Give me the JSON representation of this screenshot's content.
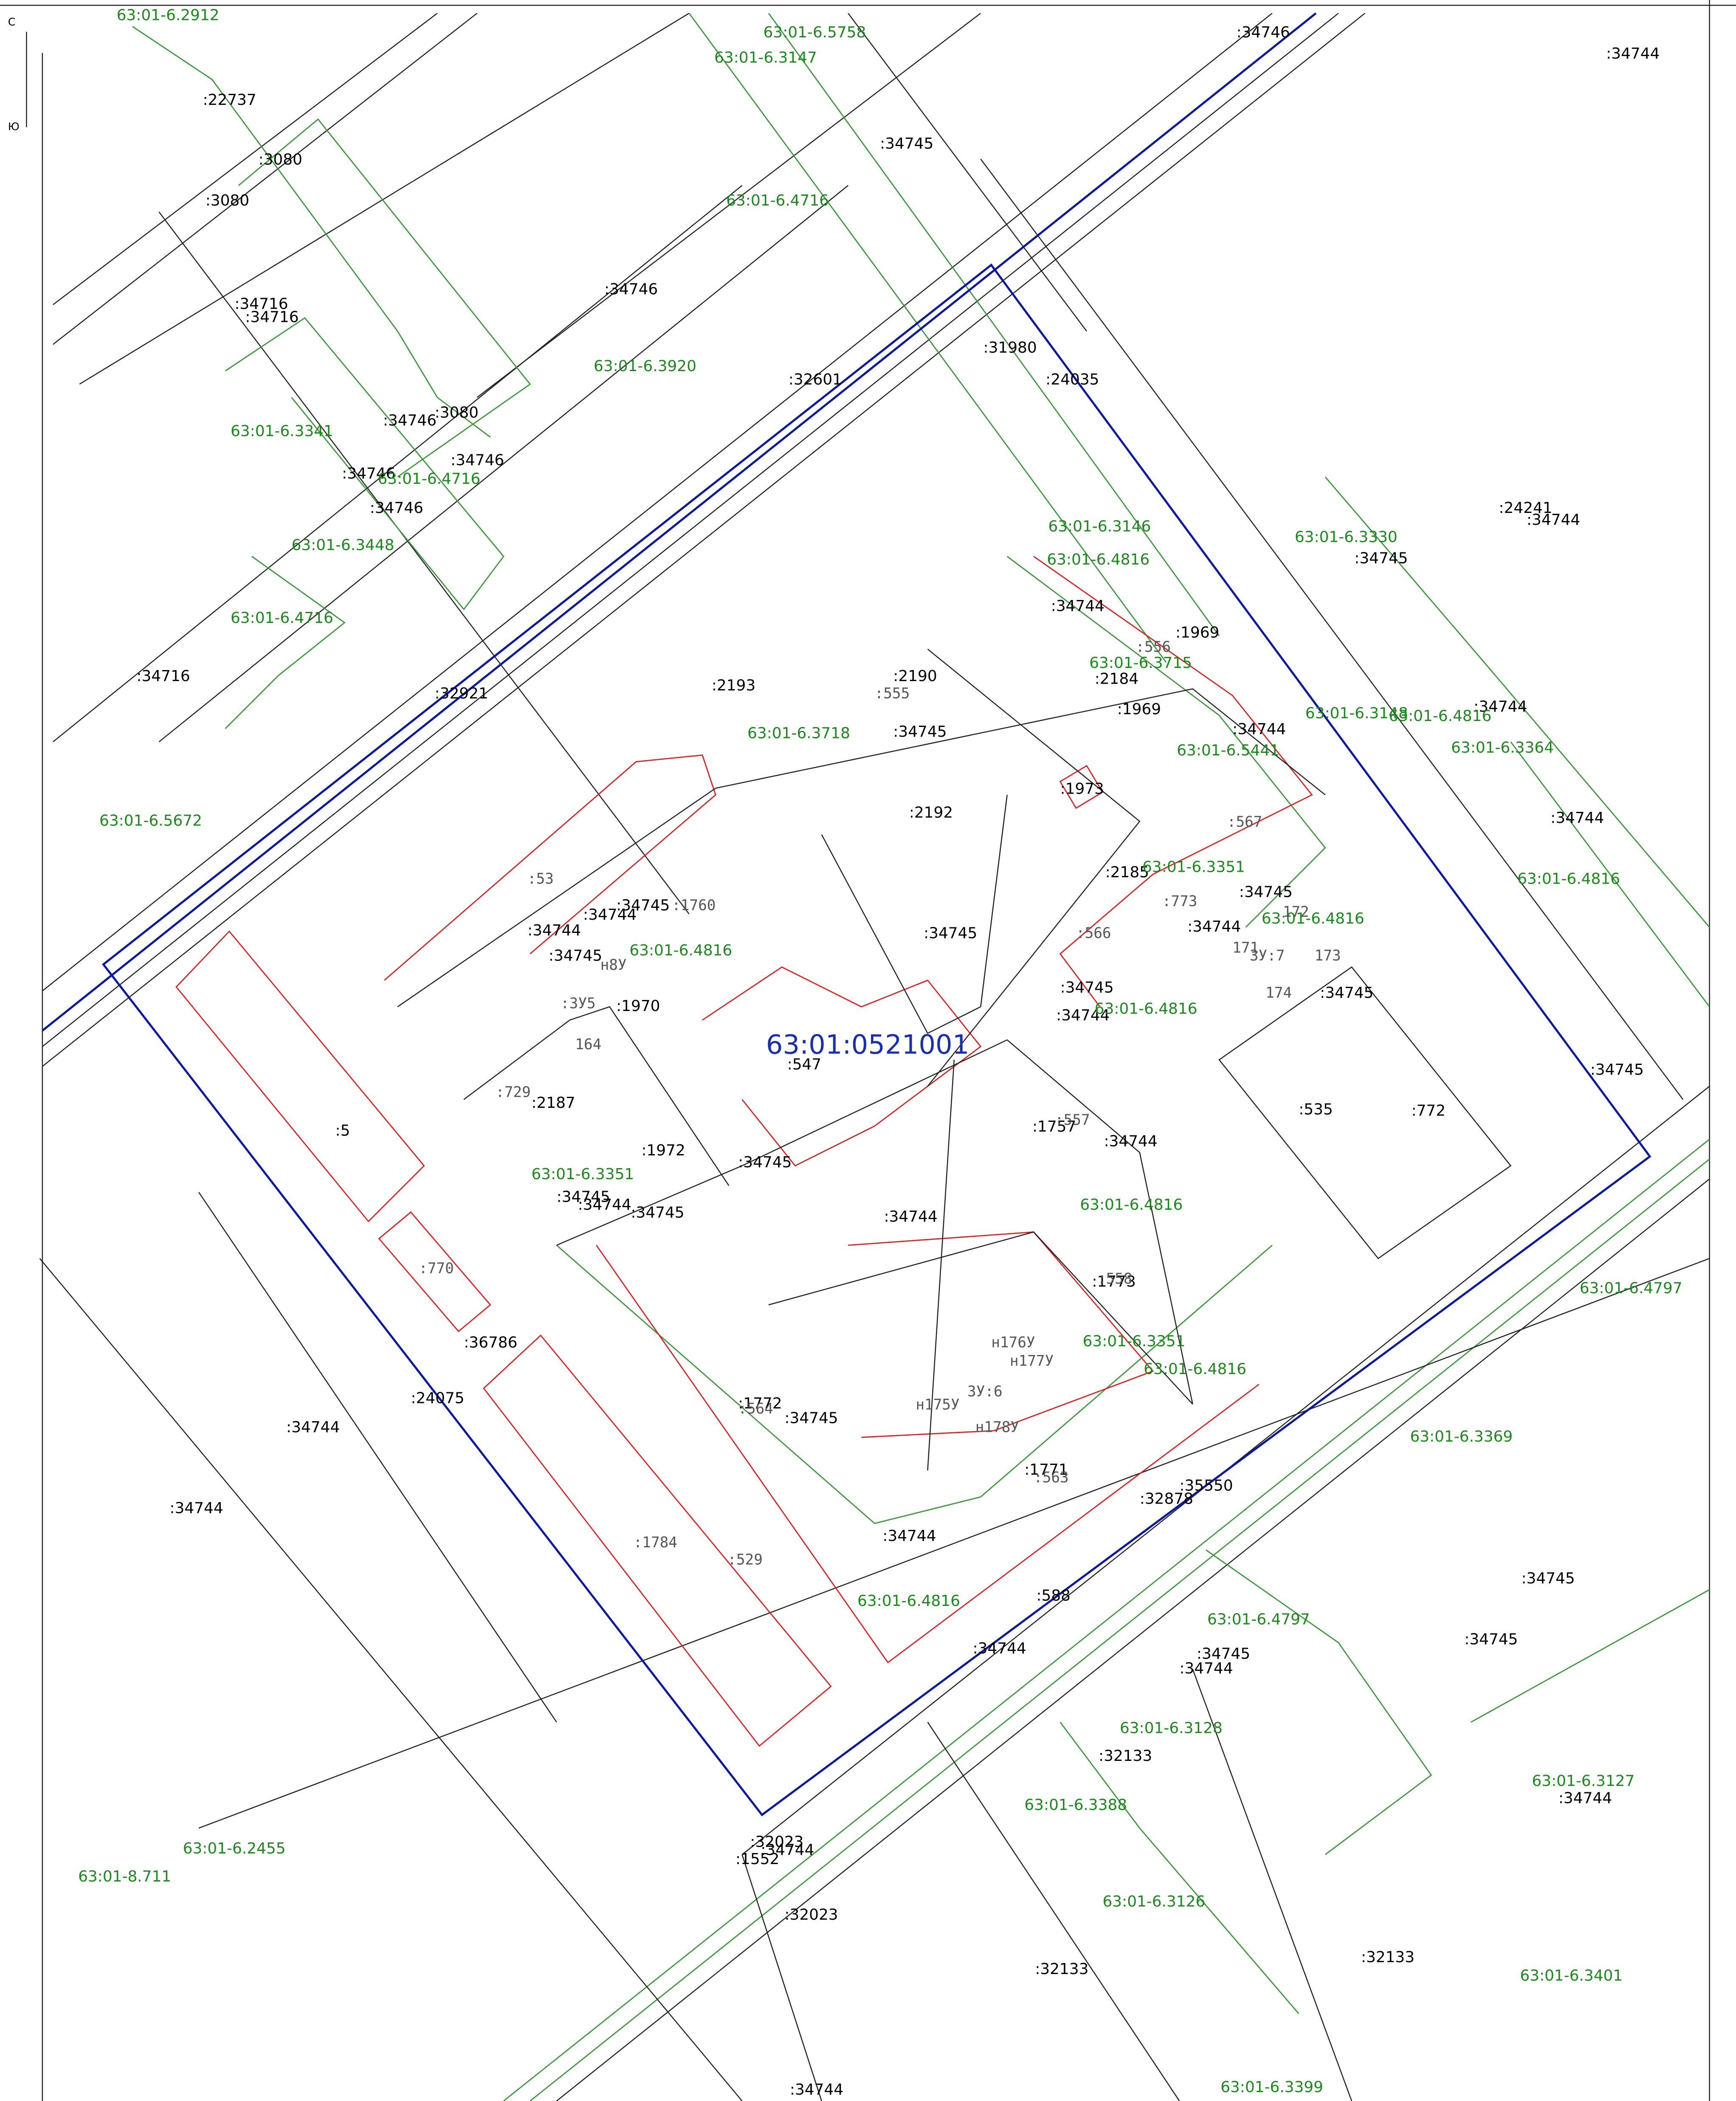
{
  "compass": [
    "С",
    "Ю"
  ],
  "map_label": "63:01:0521001",
  "labels": {
    "black": [
      ":22737",
      ":3080",
      ":3080",
      ":34716",
      ":34716",
      ":34746",
      ":32601",
      ":31980",
      ":24035",
      ":34746",
      ":3080",
      ":34746",
      ":34746",
      ":34746",
      ":34716",
      ":32921",
      ":2193",
      ":2190",
      ":34745",
      ":34744",
      ":1969",
      ":2184",
      ":1969",
      ":34744",
      ":2192",
      ":1973",
      ":2185",
      ":34745",
      ":34744",
      ":34745",
      ":34745",
      ":34744",
      ":34745",
      ":535",
      ":772",
      ":34745",
      ":1757",
      ":34744",
      ":34745",
      ":34744",
      ":1773",
      ":1972",
      ":34745",
      ":34744",
      ":34745",
      ":36786",
      ":24075",
      ":34744",
      ":34744",
      ":1772",
      ":34745",
      ":1771",
      ":32878",
      ":35550",
      ":34744",
      ":588",
      ":34744",
      ":547",
      ":5",
      ":1970",
      ":2187",
      ":34745",
      ":34744",
      ":34744",
      ":34745",
      ":34746",
      ":34744",
      ":34745",
      ":24241",
      ":34744",
      ":34745",
      ":34744",
      ":34744",
      ":34745",
      ":34745",
      ":34745",
      ":34744",
      ":32133",
      ":32133",
      ":32133",
      ":32023",
      ":32023",
      ":1552",
      ":34744",
      ":34744",
      ":34744"
    ],
    "green": [
      "63:01-6.2912",
      "63:01-6.5758",
      "63:01-6.3147",
      "63:01-6.4716",
      "63:01-6.3920",
      "63:01-6.3341",
      "63:01-6.4716",
      "63:01-6.3448",
      "63:01-6.4716",
      "63:01-6.3146",
      "63:01-6.4816",
      "63:01-6.3715",
      "63:01-6.3718",
      "63:01-6.5441",
      "63:01-6.3330",
      "63:01-6.3148",
      "63:01-6.4816",
      "63:01-6.3364",
      "63:01-6.5672",
      "63:01-6.3351",
      "63:01-6.4816",
      "63:01-6.4816",
      "63:01-6.4816",
      "63:01-6.4816",
      "63:01-6.3351",
      "63:01-6.4816",
      "63:01-6.3351",
      "63:01-6.4816",
      "63:01-6.4797",
      "63:01-6.3369",
      "63:01-6.4816",
      "63:01-6.4797",
      "63:01-6.3128",
      "63:01-6.3388",
      "63:01-6.3127",
      "63:01-6.2455",
      "63:01-8.711",
      "63:01-6.3126",
      "63:01-6.3401",
      "63:01-6.3399"
    ],
    "gray": [
      ":555",
      ":556",
      ":567",
      ":773",
      ":566",
      ":53",
      ":1760",
      ":729",
      ":770",
      ":557",
      ":558",
      ":1784",
      ":529",
      ":563",
      ":564",
      ":ЗУ5",
      "ЗУ:7",
      "ЗУ:6",
      "н176У",
      "н177У",
      "н175У",
      "н178У",
      "н8У",
      "164",
      "171",
      "172",
      "173",
      "174"
    ]
  }
}
